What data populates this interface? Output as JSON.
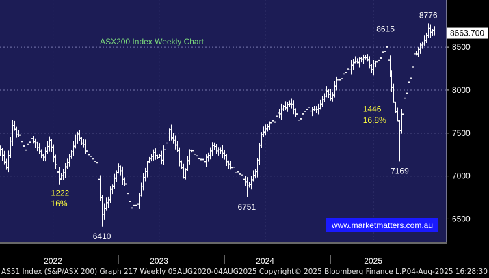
{
  "colors": {
    "background": "#000000",
    "plot_area": "#1c1c55",
    "grid": "#7a7ab0",
    "bars": "#ffffff",
    "title": "#7ddc7d",
    "annotation_yellow": "#ffff3d",
    "annotation_white": "#ffffff",
    "last_price_box": "#ffffff",
    "watermark_box": "#1a1aff"
  },
  "footer": {
    "source": "AS51 Index (S&P/ASX 200) Graph 217  Weekly 05AUG2020-04AUG2025  Copyright© 2025 Bloomberg Finance L.P.",
    "timestamp": "04-Aug-2025 16:28:30"
  },
  "chart_data": {
    "type": "ohlc",
    "title": "ASX200 Index Weekly Chart",
    "watermark": "www.marketmatters.com.au",
    "xlabel": "",
    "ylabel": "",
    "x_range": [
      "2021-07-05",
      "2025-09-15"
    ],
    "ylim": [
      6225,
      9050
    ],
    "y_ticks": [
      6500,
      7000,
      7500,
      8000,
      8500
    ],
    "year_labels": [
      {
        "label": "2022",
        "x": "2022-01-03"
      },
      {
        "label": "2023",
        "x": "2023-01-02"
      },
      {
        "label": "2024",
        "x": "2024-01-01"
      },
      {
        "label": "2025",
        "x": "2025-01-06"
      }
    ],
    "year_dividers": [
      "2022-08-15",
      "2023-08-14",
      "2024-08-12"
    ],
    "grid": true,
    "last_price": {
      "label": "8663.700",
      "value": 8663.7
    },
    "annotations": [
      {
        "text": "8776",
        "x": "2025-07-14",
        "y": 8776,
        "color": "white",
        "pos": "above"
      },
      {
        "text": "8615",
        "x": "2025-02-17",
        "y": 8615,
        "color": "white",
        "pos": "above"
      },
      {
        "text": "7169",
        "x": "2025-04-07",
        "y": 7169,
        "color": "white",
        "pos": "below"
      },
      {
        "text": "6751",
        "x": "2023-10-30",
        "y": 6751,
        "color": "white",
        "pos": "below"
      },
      {
        "text": "6410",
        "x": "2022-06-20",
        "y": 6410,
        "color": "white",
        "pos": "below"
      },
      {
        "text": "1222",
        "x": "2021-12-27",
        "y": 6800,
        "color": "yellow",
        "pos": "right"
      },
      {
        "text": "16%",
        "x": "2021-12-27",
        "y": 6680,
        "color": "yellow",
        "pos": "right"
      },
      {
        "text": "1446",
        "x": "2024-12-02",
        "y": 7780,
        "color": "yellow",
        "pos": "right"
      },
      {
        "text": "16.8%",
        "x": "2024-12-02",
        "y": 7650,
        "color": "yellow",
        "pos": "right"
      }
    ],
    "pivots": [
      [
        "2021-07-05",
        7300
      ],
      [
        "2021-07-26",
        7080
      ],
      [
        "2021-08-16",
        7600
      ],
      [
        "2021-09-27",
        7300
      ],
      [
        "2021-10-18",
        7450
      ],
      [
        "2021-11-29",
        7200
      ],
      [
        "2021-12-20",
        7430
      ],
      [
        "2022-01-24",
        6950
      ],
      [
        "2022-02-21",
        7150
      ],
      [
        "2022-03-28",
        7500
      ],
      [
        "2022-04-25",
        7300
      ],
      [
        "2022-05-30",
        7150
      ],
      [
        "2022-06-20",
        6550
      ],
      [
        "2022-07-11",
        6750
      ],
      [
        "2022-08-15",
        7100
      ],
      [
        "2022-09-05",
        6900
      ],
      [
        "2022-09-26",
        6620
      ],
      [
        "2022-10-17",
        6700
      ],
      [
        "2022-11-21",
        7150
      ],
      [
        "2022-12-12",
        7250
      ],
      [
        "2023-01-09",
        7200
      ],
      [
        "2023-02-06",
        7520
      ],
      [
        "2023-03-06",
        7300
      ],
      [
        "2023-03-27",
        6980
      ],
      [
        "2023-04-17",
        7300
      ],
      [
        "2023-05-08",
        7250
      ],
      [
        "2023-06-05",
        7150
      ],
      [
        "2023-07-03",
        7350
      ],
      [
        "2023-08-07",
        7250
      ],
      [
        "2023-08-28",
        7150
      ],
      [
        "2023-09-18",
        7050
      ],
      [
        "2023-10-09",
        7000
      ],
      [
        "2023-10-30",
        6880
      ],
      [
        "2023-11-27",
        7050
      ],
      [
        "2023-12-18",
        7500
      ],
      [
        "2024-01-29",
        7650
      ],
      [
        "2024-03-04",
        7800
      ],
      [
        "2024-04-01",
        7850
      ],
      [
        "2024-04-22",
        7650
      ],
      [
        "2024-05-27",
        7780
      ],
      [
        "2024-06-24",
        7750
      ],
      [
        "2024-07-29",
        8000
      ],
      [
        "2024-08-12",
        7880
      ],
      [
        "2024-09-02",
        8100
      ],
      [
        "2024-10-14",
        8250
      ],
      [
        "2024-11-11",
        8350
      ],
      [
        "2024-12-09",
        8400
      ],
      [
        "2024-12-30",
        8250
      ],
      [
        "2025-01-27",
        8400
      ],
      [
        "2025-02-17",
        8500
      ],
      [
        "2025-03-03",
        8200
      ],
      [
        "2025-03-17",
        7850
      ],
      [
        "2025-04-07",
        7550
      ],
      [
        "2025-04-21",
        7900
      ],
      [
        "2025-05-12",
        8150
      ],
      [
        "2025-05-26",
        8400
      ],
      [
        "2025-06-16",
        8500
      ],
      [
        "2025-07-14",
        8700
      ],
      [
        "2025-08-04",
        8663.7
      ]
    ],
    "forced_extremes": [
      {
        "date": "2025-07-14",
        "high": 8776
      },
      {
        "date": "2025-02-17",
        "high": 8615
      },
      {
        "date": "2025-04-07",
        "low": 7169
      },
      {
        "date": "2023-10-30",
        "low": 6751
      },
      {
        "date": "2022-06-20",
        "low": 6410
      }
    ]
  }
}
